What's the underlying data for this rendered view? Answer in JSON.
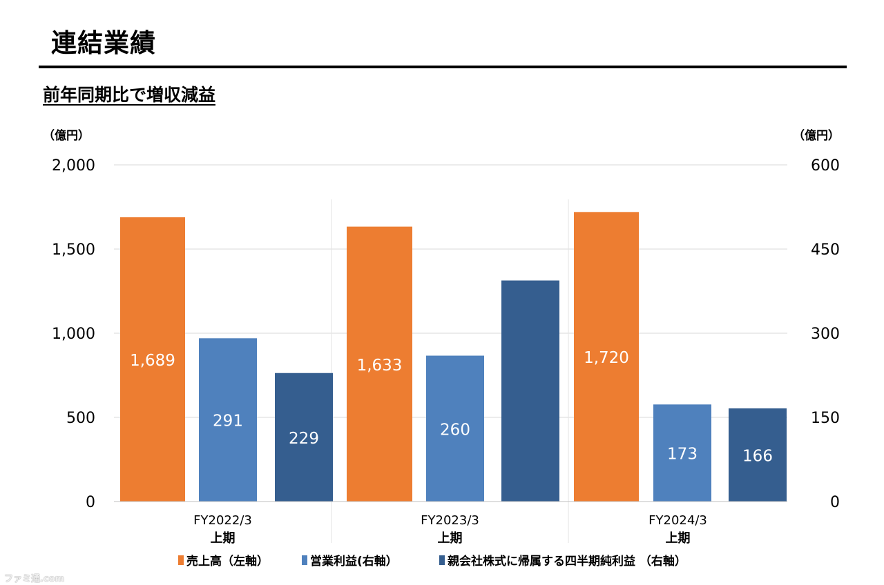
{
  "header": {
    "title": "連結業績",
    "subtitle": "前年同期比で増収減益"
  },
  "watermark": "ファミ通.com",
  "chart_data": {
    "type": "bar",
    "categories": [
      [
        "FY2022/3",
        "上期"
      ],
      [
        "FY2023/3",
        "上期"
      ],
      [
        "FY2024/3",
        "上期"
      ]
    ],
    "left_axis": {
      "unit_label": "（億円）",
      "range": [
        0,
        2000
      ],
      "ticks": [
        0,
        500,
        1000,
        1500,
        2000
      ],
      "tick_labels": [
        "0",
        "500",
        "1,000",
        "1,500",
        "2,000"
      ]
    },
    "right_axis": {
      "unit_label": "（億円）",
      "range": [
        0,
        600
      ],
      "ticks": [
        0,
        150,
        300,
        450,
        600
      ],
      "tick_labels": [
        "0",
        "150",
        "300",
        "450",
        "600"
      ]
    },
    "series": [
      {
        "name": "売上高（左軸）",
        "axis": "left",
        "color": "#ED7D31",
        "values": [
          1689,
          1633,
          1720
        ],
        "labels": [
          "1,689",
          "1,633",
          "1,720"
        ]
      },
      {
        "name": "営業利益(右軸）",
        "axis": "right",
        "color": "#4F81BD",
        "values": [
          291,
          260,
          173
        ],
        "labels": [
          "291",
          "260",
          "173"
        ]
      },
      {
        "name": "親会社株式に帰属する四半期純利益 （右軸）",
        "axis": "right",
        "color": "#355E8F",
        "values": [
          229,
          394,
          166
        ],
        "labels": [
          "229",
          "",
          "166"
        ]
      }
    ],
    "data_label_color": "#ffffff",
    "grid": true,
    "legend_position": "bottom"
  }
}
